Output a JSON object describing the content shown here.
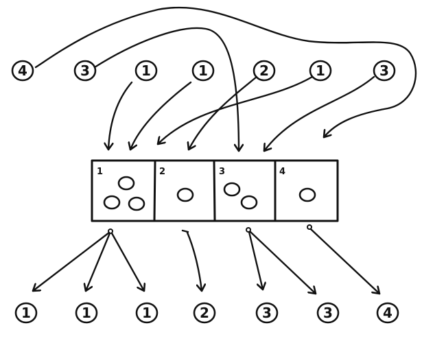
{
  "input_items": [
    {
      "label": "4"
    },
    {
      "label": "3"
    },
    {
      "label": "1"
    },
    {
      "label": "1"
    },
    {
      "label": "2"
    },
    {
      "label": "1"
    },
    {
      "label": "3"
    }
  ],
  "buckets": [
    {
      "label": "1",
      "item_count": 3
    },
    {
      "label": "2",
      "item_count": 1
    },
    {
      "label": "3",
      "item_count": 2
    },
    {
      "label": "4",
      "item_count": 1
    }
  ],
  "output_items": [
    {
      "label": "1"
    },
    {
      "label": "1"
    },
    {
      "label": "1"
    },
    {
      "label": "2"
    },
    {
      "label": "3"
    },
    {
      "label": "3"
    },
    {
      "label": "4"
    }
  ],
  "ink_color": "#111111"
}
